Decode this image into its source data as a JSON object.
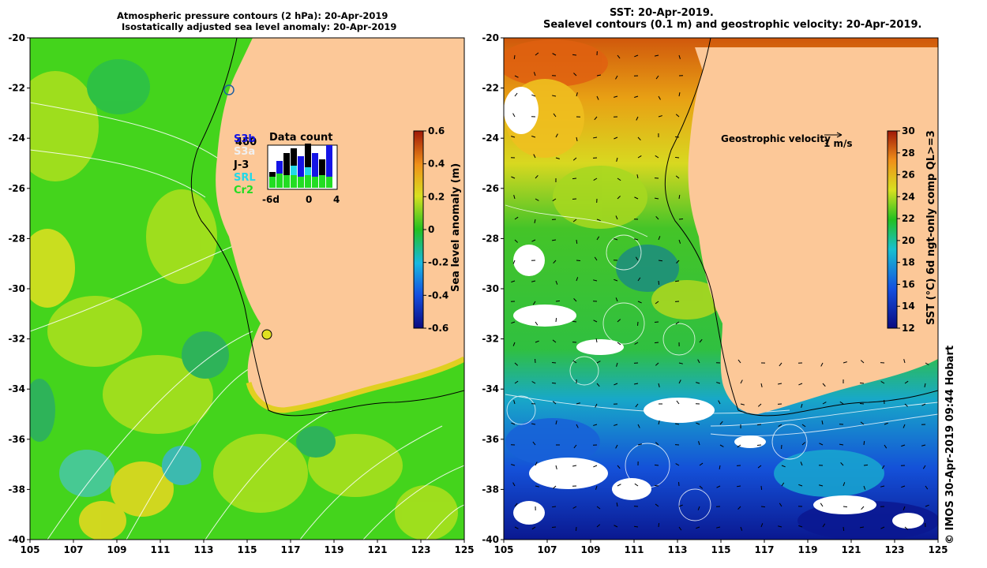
{
  "left_panel": {
    "title_line1": "Atmospheric pressure contours (2 hPa): 20-Apr-2019",
    "title_line2": "Isostatically adjusted sea level anomaly: 20-Apr-2019",
    "colorbar": {
      "label": "Sea level anomaly (m)",
      "ticks": [
        "0.6",
        "0.4",
        "0.2",
        "0",
        "-0.2",
        "-0.4",
        "-0.6"
      ]
    },
    "data_count": {
      "title": "Data count",
      "legend": [
        {
          "label": "S3b",
          "color": "#1414e6"
        },
        {
          "label": "S3a",
          "color": "#f0f0f0"
        },
        {
          "label": "J-3",
          "color": "#000000"
        },
        {
          "label": "SRL",
          "color": "#22d8e8"
        },
        {
          "label": "Cr2",
          "color": "#22dd22"
        }
      ],
      "count_label": "460",
      "x_ticks": [
        "-6d",
        "0",
        "4"
      ]
    }
  },
  "right_panel": {
    "title_line1": "SST: 20-Apr-2019.",
    "title_line2": "Sealevel contours (0.1 m) and geostrophic velocity: 20-Apr-2019.",
    "colorbar": {
      "label": "SST (°C) 6d ngt-only comp QL>=3",
      "ticks": [
        "30",
        "28",
        "26",
        "24",
        "22",
        "20",
        "18",
        "16",
        "14",
        "12"
      ]
    },
    "velocity_key": {
      "label": "Geostrophic velocity",
      "scale": "1 m/s"
    }
  },
  "axes": {
    "x_ticks": [
      "105",
      "107",
      "109",
      "111",
      "113",
      "115",
      "117",
      "119",
      "121",
      "123",
      "125"
    ],
    "y_ticks": [
      "-20",
      "-22",
      "-24",
      "-26",
      "-28",
      "-30",
      "-32",
      "-34",
      "-36",
      "-38",
      "-40"
    ]
  },
  "credit": "© IMOS 30-Apr-2019 09:44 Hobart",
  "colors": {
    "land": "#fcc898",
    "sla_green": "#44d41c",
    "sla_yellowgreen": "#a8e01e",
    "sst_orange": "#e89014",
    "sst_green": "#34c428",
    "sst_blue": "#1e58d8"
  }
}
